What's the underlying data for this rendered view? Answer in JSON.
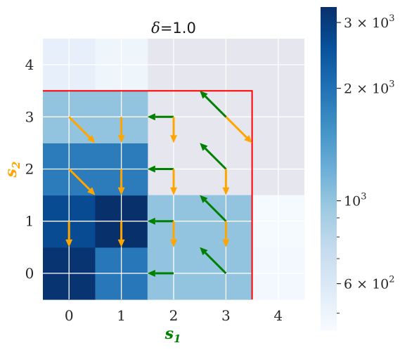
{
  "chart_data": {
    "type": "heatmap",
    "title_symbol": "δ",
    "title_value": "=1.0",
    "xlabel_base": "s",
    "xlabel_sub": "1",
    "ylabel_base": "s",
    "ylabel_sub": "2",
    "x_ticks": [
      "0",
      "1",
      "2",
      "3",
      "4"
    ],
    "y_ticks": [
      "0",
      "1",
      "2",
      "3",
      "4"
    ],
    "grid": true,
    "colorscale": "Blues",
    "colorbar": {
      "scale": "log",
      "range": [
        450,
        3300
      ],
      "labeled_ticks": [
        {
          "value": 600,
          "mantissa": "6 × 10",
          "exp": "2"
        },
        {
          "value": 1000,
          "mantissa": "10",
          "exp": "3"
        },
        {
          "value": 2000,
          "mantissa": "2 × 10",
          "exp": "3"
        },
        {
          "value": 3000,
          "mantissa": "3 × 10",
          "exp": "3"
        }
      ],
      "minor_ticks": [
        500,
        700,
        800,
        900
      ]
    },
    "cells": [
      {
        "x": 0,
        "y": 0,
        "value": 3200
      },
      {
        "x": 1,
        "y": 0,
        "value": 1900
      },
      {
        "x": 2,
        "y": 0,
        "value": 1000
      },
      {
        "x": 3,
        "y": 0,
        "value": 1000
      },
      {
        "x": 4,
        "y": 0,
        "value": 470
      },
      {
        "x": 0,
        "y": 1,
        "value": 2700
      },
      {
        "x": 1,
        "y": 1,
        "value": 3300
      },
      {
        "x": 2,
        "y": 1,
        "value": 1000
      },
      {
        "x": 3,
        "y": 1,
        "value": 1000
      },
      {
        "x": 4,
        "y": 1,
        "value": 460
      },
      {
        "x": 0,
        "y": 2,
        "value": 1850
      },
      {
        "x": 1,
        "y": 2,
        "value": 1850
      },
      {
        "x": 0,
        "y": 3,
        "value": 1000
      },
      {
        "x": 1,
        "y": 3,
        "value": 1000
      },
      {
        "x": 0,
        "y": 4,
        "value": 530
      },
      {
        "x": 1,
        "y": 4,
        "value": 490
      }
    ],
    "masked_color": "#e6e6ee",
    "boundary": {
      "x0": -0.5,
      "y0": -0.5,
      "x1": 3.5,
      "y1": 3.5,
      "color": "#ff0000"
    },
    "arrows": [
      {
        "x": 0,
        "y": 3,
        "dx": 0.5,
        "dy": -0.5,
        "color": "#ffa500"
      },
      {
        "x": 1,
        "y": 3,
        "dx": 0,
        "dy": -0.5,
        "color": "#ffa500"
      },
      {
        "x": 2,
        "y": 3,
        "dx": -0.5,
        "dy": 0,
        "color": "#008000"
      },
      {
        "x": 2,
        "y": 3,
        "dx": 0,
        "dy": -0.5,
        "color": "#ffa500"
      },
      {
        "x": 3,
        "y": 3,
        "dx": -0.5,
        "dy": 0.5,
        "color": "#008000"
      },
      {
        "x": 3,
        "y": 3,
        "dx": 0.5,
        "dy": -0.5,
        "color": "#ffa500"
      },
      {
        "x": 0,
        "y": 2,
        "dx": 0.5,
        "dy": -0.5,
        "color": "#ffa500"
      },
      {
        "x": 1,
        "y": 2,
        "dx": 0,
        "dy": -0.5,
        "color": "#ffa500"
      },
      {
        "x": 2,
        "y": 2,
        "dx": -0.5,
        "dy": 0,
        "color": "#008000"
      },
      {
        "x": 2,
        "y": 2,
        "dx": 0,
        "dy": -0.5,
        "color": "#ffa500"
      },
      {
        "x": 3,
        "y": 2,
        "dx": -0.5,
        "dy": 0.5,
        "color": "#008000"
      },
      {
        "x": 3,
        "y": 2,
        "dx": 0,
        "dy": -0.5,
        "color": "#ffa500"
      },
      {
        "x": 0,
        "y": 1,
        "dx": 0,
        "dy": -0.5,
        "color": "#ffa500"
      },
      {
        "x": 1,
        "y": 1,
        "dx": 0,
        "dy": -0.5,
        "color": "#ffa500"
      },
      {
        "x": 2,
        "y": 1,
        "dx": -0.5,
        "dy": 0,
        "color": "#008000"
      },
      {
        "x": 2,
        "y": 1,
        "dx": 0,
        "dy": -0.5,
        "color": "#ffa500"
      },
      {
        "x": 3,
        "y": 1,
        "dx": -0.5,
        "dy": 0.5,
        "color": "#008000"
      },
      {
        "x": 3,
        "y": 1,
        "dx": 0,
        "dy": -0.5,
        "color": "#ffa500"
      },
      {
        "x": 2,
        "y": 0,
        "dx": -0.5,
        "dy": 0,
        "color": "#008000"
      },
      {
        "x": 3,
        "y": 0,
        "dx": -0.5,
        "dy": 0.5,
        "color": "#008000"
      }
    ],
    "xlabel_color": "#008000",
    "ylabel_color": "#ffa500"
  }
}
